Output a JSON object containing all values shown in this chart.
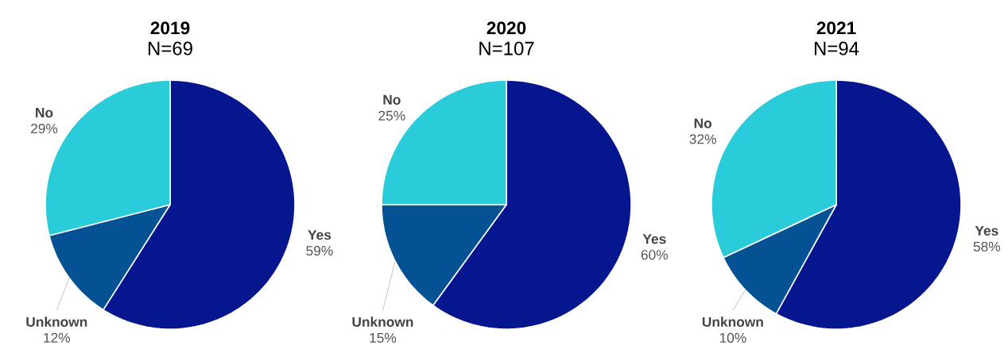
{
  "chart_data": [
    {
      "type": "pie",
      "title": "2019",
      "subtitle": "N=69",
      "categories": [
        "Yes",
        "Unknown",
        "No"
      ],
      "values": [
        59,
        12,
        29
      ],
      "colors": [
        "#05168f",
        "#045293",
        "#29ccd8"
      ],
      "value_labels": [
        "59%",
        "12%",
        "29%"
      ]
    },
    {
      "type": "pie",
      "title": "2020",
      "subtitle": "N=107",
      "categories": [
        "Yes",
        "Unknown",
        "No"
      ],
      "values": [
        60,
        15,
        25
      ],
      "colors": [
        "#05168f",
        "#045293",
        "#29ccd8"
      ],
      "value_labels": [
        "60%",
        "15%",
        "25%"
      ]
    },
    {
      "type": "pie",
      "title": "2021",
      "subtitle": "N=94",
      "categories": [
        "Yes",
        "Unknown",
        "No"
      ],
      "values": [
        58,
        10,
        32
      ],
      "colors": [
        "#05168f",
        "#045293",
        "#29ccd8"
      ],
      "value_labels": [
        "58%",
        "10%",
        "32%"
      ]
    }
  ]
}
